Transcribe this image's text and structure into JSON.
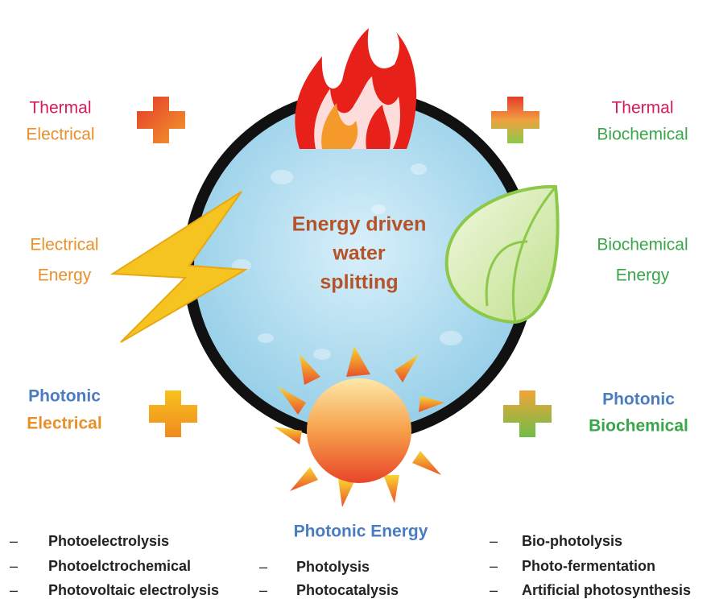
{
  "center": {
    "lines": [
      "Energy driven",
      "water",
      "splitting"
    ]
  },
  "top_left": [
    "Thermal",
    "Electrical"
  ],
  "top_right": [
    "Thermal",
    "Biochemical"
  ],
  "left": [
    "Electrical",
    "Energy"
  ],
  "right": [
    "Biochemical",
    "Energy"
  ],
  "bottom_left": [
    "Photonic",
    "Electrical"
  ],
  "bottom_right": [
    "Photonic",
    "Biochemical"
  ],
  "bottom_center": "Photonic Energy",
  "lists": {
    "left": [
      "Photoelectrolysis",
      "Photoelctrochemical",
      "Photovoltaic electrolysis"
    ],
    "center": [
      "Photolysis",
      "Photocatalysis"
    ],
    "right": [
      "Bio-photolysis",
      "Photo-fermentation",
      "Artificial photosynthesis"
    ]
  }
}
